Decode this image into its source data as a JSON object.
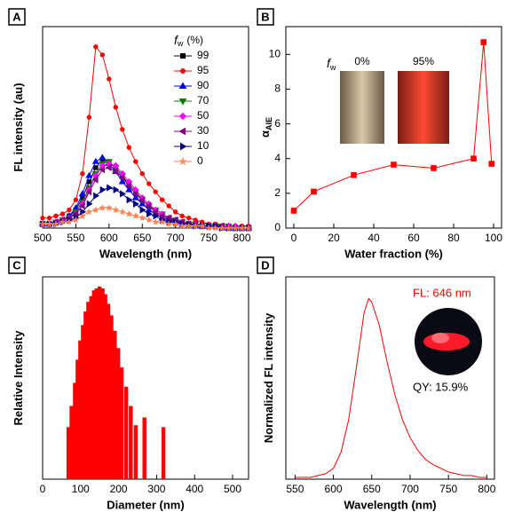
{
  "chart_data": [
    {
      "panel": "A",
      "type": "line",
      "xlabel": "Wavelength (nm)",
      "ylabel": "FL intensity (au)",
      "xlim": [
        500,
        810
      ],
      "xticks": [
        500,
        550,
        600,
        650,
        700,
        750,
        800
      ],
      "ylim": [
        0,
        100
      ],
      "legend_title": "f",
      "legend_title_subscript": "w",
      "legend_title_unit": "(%)",
      "x": [
        500,
        510,
        520,
        530,
        540,
        550,
        560,
        570,
        580,
        590,
        600,
        610,
        620,
        630,
        640,
        650,
        660,
        670,
        680,
        690,
        700,
        710,
        720,
        730,
        740,
        750,
        760,
        770,
        780,
        790,
        800,
        810
      ],
      "series": [
        {
          "name": "99",
          "color": "#000000",
          "marker": "square",
          "values": [
            2,
            2,
            3,
            4,
            6,
            9,
            15,
            23,
            30,
            34,
            33,
            30,
            26,
            21,
            17,
            14,
            11,
            8,
            6,
            5,
            3,
            3,
            2,
            2,
            1,
            1,
            1,
            1,
            0,
            0,
            0,
            0
          ]
        },
        {
          "name": "95",
          "color": "#ff0000",
          "marker": "circle",
          "values": [
            5,
            5,
            6,
            7,
            9,
            14,
            27,
            55,
            90,
            86,
            74,
            60,
            49,
            40,
            33,
            27,
            22,
            18,
            14,
            11,
            8,
            6,
            5,
            4,
            3,
            2,
            2,
            1,
            1,
            1,
            1,
            1
          ]
        },
        {
          "name": "90",
          "color": "#0000ff",
          "marker": "triangle-up",
          "values": [
            2,
            2,
            3,
            4,
            6,
            10,
            17,
            26,
            33,
            35,
            32,
            28,
            23,
            19,
            15,
            12,
            9,
            7,
            5,
            4,
            3,
            2,
            2,
            1,
            1,
            1,
            1,
            0,
            0,
            0,
            0,
            0
          ]
        },
        {
          "name": "70",
          "color": "#008000",
          "marker": "triangle-down",
          "values": [
            2,
            2,
            3,
            4,
            5,
            8,
            13,
            20,
            27,
            32,
            33,
            30,
            26,
            22,
            18,
            14,
            11,
            9,
            7,
            5,
            4,
            3,
            2,
            2,
            1,
            1,
            1,
            1,
            1,
            0,
            0,
            0
          ]
        },
        {
          "name": "50",
          "color": "#ff00ff",
          "marker": "diamond",
          "values": [
            2,
            2,
            3,
            4,
            5,
            7,
            12,
            19,
            26,
            31,
            32,
            31,
            27,
            23,
            19,
            15,
            12,
            9,
            7,
            5,
            4,
            3,
            2,
            2,
            1,
            1,
            1,
            1,
            1,
            1,
            0,
            0
          ]
        },
        {
          "name": "30",
          "color": "#800080",
          "marker": "triangle-left",
          "values": [
            2,
            2,
            3,
            4,
            5,
            7,
            11,
            18,
            24,
            29,
            30,
            28,
            25,
            21,
            17,
            14,
            11,
            8,
            6,
            5,
            4,
            3,
            2,
            2,
            1,
            1,
            1,
            1,
            0,
            0,
            0,
            0
          ]
        },
        {
          "name": "10",
          "color": "#000080",
          "marker": "triangle-right",
          "values": [
            2,
            2,
            2,
            3,
            4,
            5,
            8,
            12,
            16,
            19,
            20,
            19,
            17,
            14,
            12,
            9,
            7,
            6,
            4,
            3,
            3,
            2,
            2,
            1,
            1,
            1,
            1,
            0,
            0,
            0,
            0,
            0
          ]
        },
        {
          "name": "0",
          "color": "#ff7f50",
          "marker": "star",
          "values": [
            2,
            2,
            2,
            3,
            3,
            4,
            6,
            8,
            9,
            10,
            10,
            9,
            8,
            7,
            6,
            5,
            4,
            3,
            3,
            2,
            2,
            1,
            1,
            1,
            1,
            0,
            0,
            0,
            0,
            0,
            0,
            0
          ]
        }
      ]
    },
    {
      "panel": "B",
      "type": "line",
      "xlabel": "Water fraction (%)",
      "ylabel": "α",
      "ylabel_subscript": "AIE",
      "xlim": [
        -4,
        104
      ],
      "xticks": [
        0,
        20,
        40,
        60,
        80,
        100
      ],
      "ylim": [
        0,
        11.6
      ],
      "yticks": [
        0,
        2,
        4,
        6,
        8,
        10
      ],
      "inset_labels": {
        "symbol": "f",
        "subscript": "w",
        "left": "0%",
        "right": "95%"
      },
      "x": [
        0,
        10,
        30,
        50,
        70,
        90,
        95,
        99
      ],
      "series": [
        {
          "color": "#ff0000",
          "marker": "square",
          "values": [
            1.0,
            2.1,
            3.05,
            3.65,
            3.45,
            4.0,
            10.7,
            3.7
          ]
        }
      ]
    },
    {
      "panel": "C",
      "type": "bar",
      "xlabel": "Diameter (nm)",
      "ylabel": "Relative Intensity",
      "color": "#ff0000",
      "xlim": [
        0,
        542
      ],
      "xticks": [
        0,
        100,
        200,
        300,
        400,
        500
      ],
      "ylim": [
        0,
        105
      ],
      "x": [
        68,
        76,
        85,
        92,
        99,
        106,
        113,
        120,
        128,
        135,
        142,
        150,
        158,
        165,
        173,
        181,
        190,
        199,
        208,
        220,
        232,
        245,
        268,
        318
      ],
      "values": [
        27,
        38,
        50,
        62,
        72,
        80,
        87,
        92,
        95,
        98,
        99,
        100,
        99,
        96,
        91,
        85,
        77,
        68,
        58,
        48,
        38,
        28,
        32,
        27
      ]
    },
    {
      "panel": "D",
      "type": "line",
      "xlabel": "Wavelength (nm)",
      "ylabel": "Normalized FL intensity",
      "xlim": [
        538,
        810
      ],
      "xticks": [
        550,
        600,
        650,
        700,
        750,
        800
      ],
      "ylim": [
        0,
        1.12
      ],
      "annotations": [
        "FL: 646 nm",
        "QY: 15.9%"
      ],
      "x": [
        550,
        560,
        570,
        580,
        590,
        600,
        610,
        620,
        630,
        640,
        646,
        650,
        660,
        670,
        680,
        690,
        700,
        710,
        720,
        730,
        740,
        750,
        760,
        770,
        780,
        790,
        800
      ],
      "series": [
        {
          "color": "#ff0000",
          "values": [
            0.01,
            0.01,
            0.01,
            0.02,
            0.03,
            0.06,
            0.15,
            0.33,
            0.62,
            0.92,
            1.0,
            0.98,
            0.85,
            0.65,
            0.47,
            0.33,
            0.23,
            0.16,
            0.11,
            0.08,
            0.06,
            0.04,
            0.03,
            0.02,
            0.02,
            0.01,
            0.01
          ]
        }
      ]
    }
  ]
}
